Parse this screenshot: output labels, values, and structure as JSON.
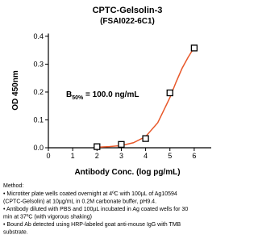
{
  "chart_data": {
    "type": "scatter",
    "title": "CPTC-Gelsolin-3",
    "subtitle": "(FSAI022-6C1)",
    "x_label": "Antibody Conc. (log pg/mL)",
    "y_label": "OD 450nm",
    "annotation": {
      "main": "B",
      "subscript": "50%",
      "rest": " = 100.0 ng/mL"
    },
    "xlim": [
      0,
      6.7
    ],
    "xticks": [
      0,
      1,
      2,
      3,
      4,
      5,
      6
    ],
    "ylim": [
      0,
      0.41
    ],
    "yticks": [
      {
        "value": 0,
        "label": "0.0"
      },
      {
        "value": 0.1,
        "label": "0.1"
      },
      {
        "value": 0.2,
        "label": "0.2"
      },
      {
        "value": 0.3,
        "label": "0.3"
      },
      {
        "value": 0.4,
        "label": "0.4"
      }
    ],
    "grid": false,
    "series": [
      {
        "color": "#000000",
        "x": [
          2,
          3,
          4,
          5,
          6
        ],
        "values": [
          0.004,
          0.012,
          0.033,
          0.197,
          0.358
        ]
      }
    ],
    "fit": {
      "color": "#e8582a",
      "x": [
        2,
        2.5,
        3,
        3.5,
        4,
        4.5,
        5,
        5.25,
        5.5,
        5.75,
        6
      ],
      "values": [
        0.002,
        0.004,
        0.008,
        0.018,
        0.04,
        0.09,
        0.18,
        0.235,
        0.285,
        0.325,
        0.36
      ]
    }
  },
  "method": {
    "title": "Method:",
    "lines": [
      "• Microtiter plate wells coated overnight at 4ºC  with  100µL of Ag10594",
      "(CPTC-Gelsolin) at 10µg/mL in 0.2M carbonate buffer, pH9.4.",
      "• Antibody diluted with PBS and 100µL incubated in Ag coated wells for 30",
      "min at 37ºC (with vigorous shaking)",
      "• Bound Ab detected using HRP-labeled goat anti-mouse IgG with TMB",
      "substrate."
    ]
  }
}
